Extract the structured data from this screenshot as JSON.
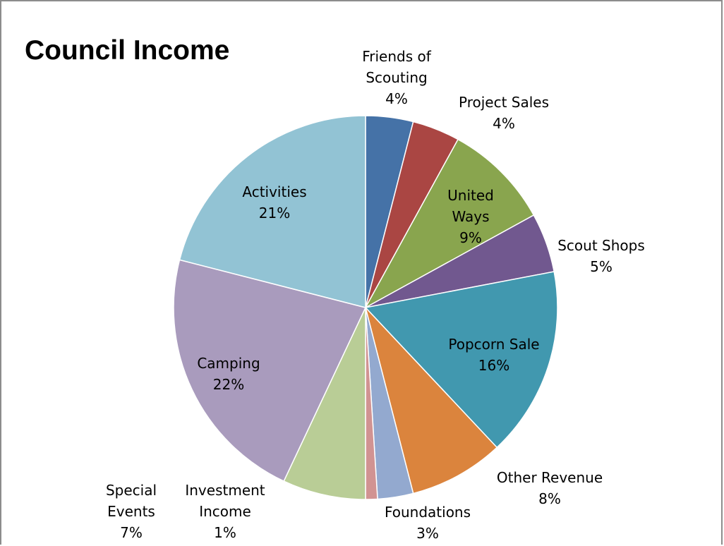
{
  "chart_data": {
    "type": "pie",
    "title": "Council Income",
    "start_angle_deg": 0,
    "direction": "clockwise",
    "legend": "none",
    "slices": [
      {
        "label": "Friends of Scouting",
        "label_lines": [
          "Friends of",
          "Scouting"
        ],
        "value": 4,
        "value_label": "4%",
        "color": "#4572a7"
      },
      {
        "label": "Project Sales",
        "label_lines": [
          "Project Sales"
        ],
        "value": 4,
        "value_label": "4%",
        "color": "#aa4643"
      },
      {
        "label": "United Ways",
        "label_lines": [
          "United",
          "Ways"
        ],
        "value": 9,
        "value_label": "9%",
        "color": "#89a54e"
      },
      {
        "label": "Scout Shops",
        "label_lines": [
          "Scout Shops"
        ],
        "value": 5,
        "value_label": "5%",
        "color": "#71588f"
      },
      {
        "label": "Popcorn Sale",
        "label_lines": [
          "Popcorn Sale"
        ],
        "value": 16,
        "value_label": "16%",
        "color": "#4198af"
      },
      {
        "label": "Other Revenue",
        "label_lines": [
          "Other Revenue"
        ],
        "value": 8,
        "value_label": "8%",
        "color": "#db843d"
      },
      {
        "label": "Foundations",
        "label_lines": [
          "Foundations"
        ],
        "value": 3,
        "value_label": "3%",
        "color": "#93a9cf"
      },
      {
        "label": "Investment Income",
        "label_lines": [
          "Investment",
          "Income"
        ],
        "value": 1,
        "value_label": "1%",
        "color": "#d19392"
      },
      {
        "label": "Special Events",
        "label_lines": [
          "Special",
          "Events"
        ],
        "value": 7,
        "value_label": "7%",
        "color": "#b9cd96"
      },
      {
        "label": "Camping",
        "label_lines": [
          "Camping"
        ],
        "value": 22,
        "value_label": "22%",
        "color": "#a99bbd"
      },
      {
        "label": "Activities",
        "label_lines": [
          "Activities"
        ],
        "value": 21,
        "value_label": "21%",
        "color": "#92c3d4"
      }
    ]
  }
}
